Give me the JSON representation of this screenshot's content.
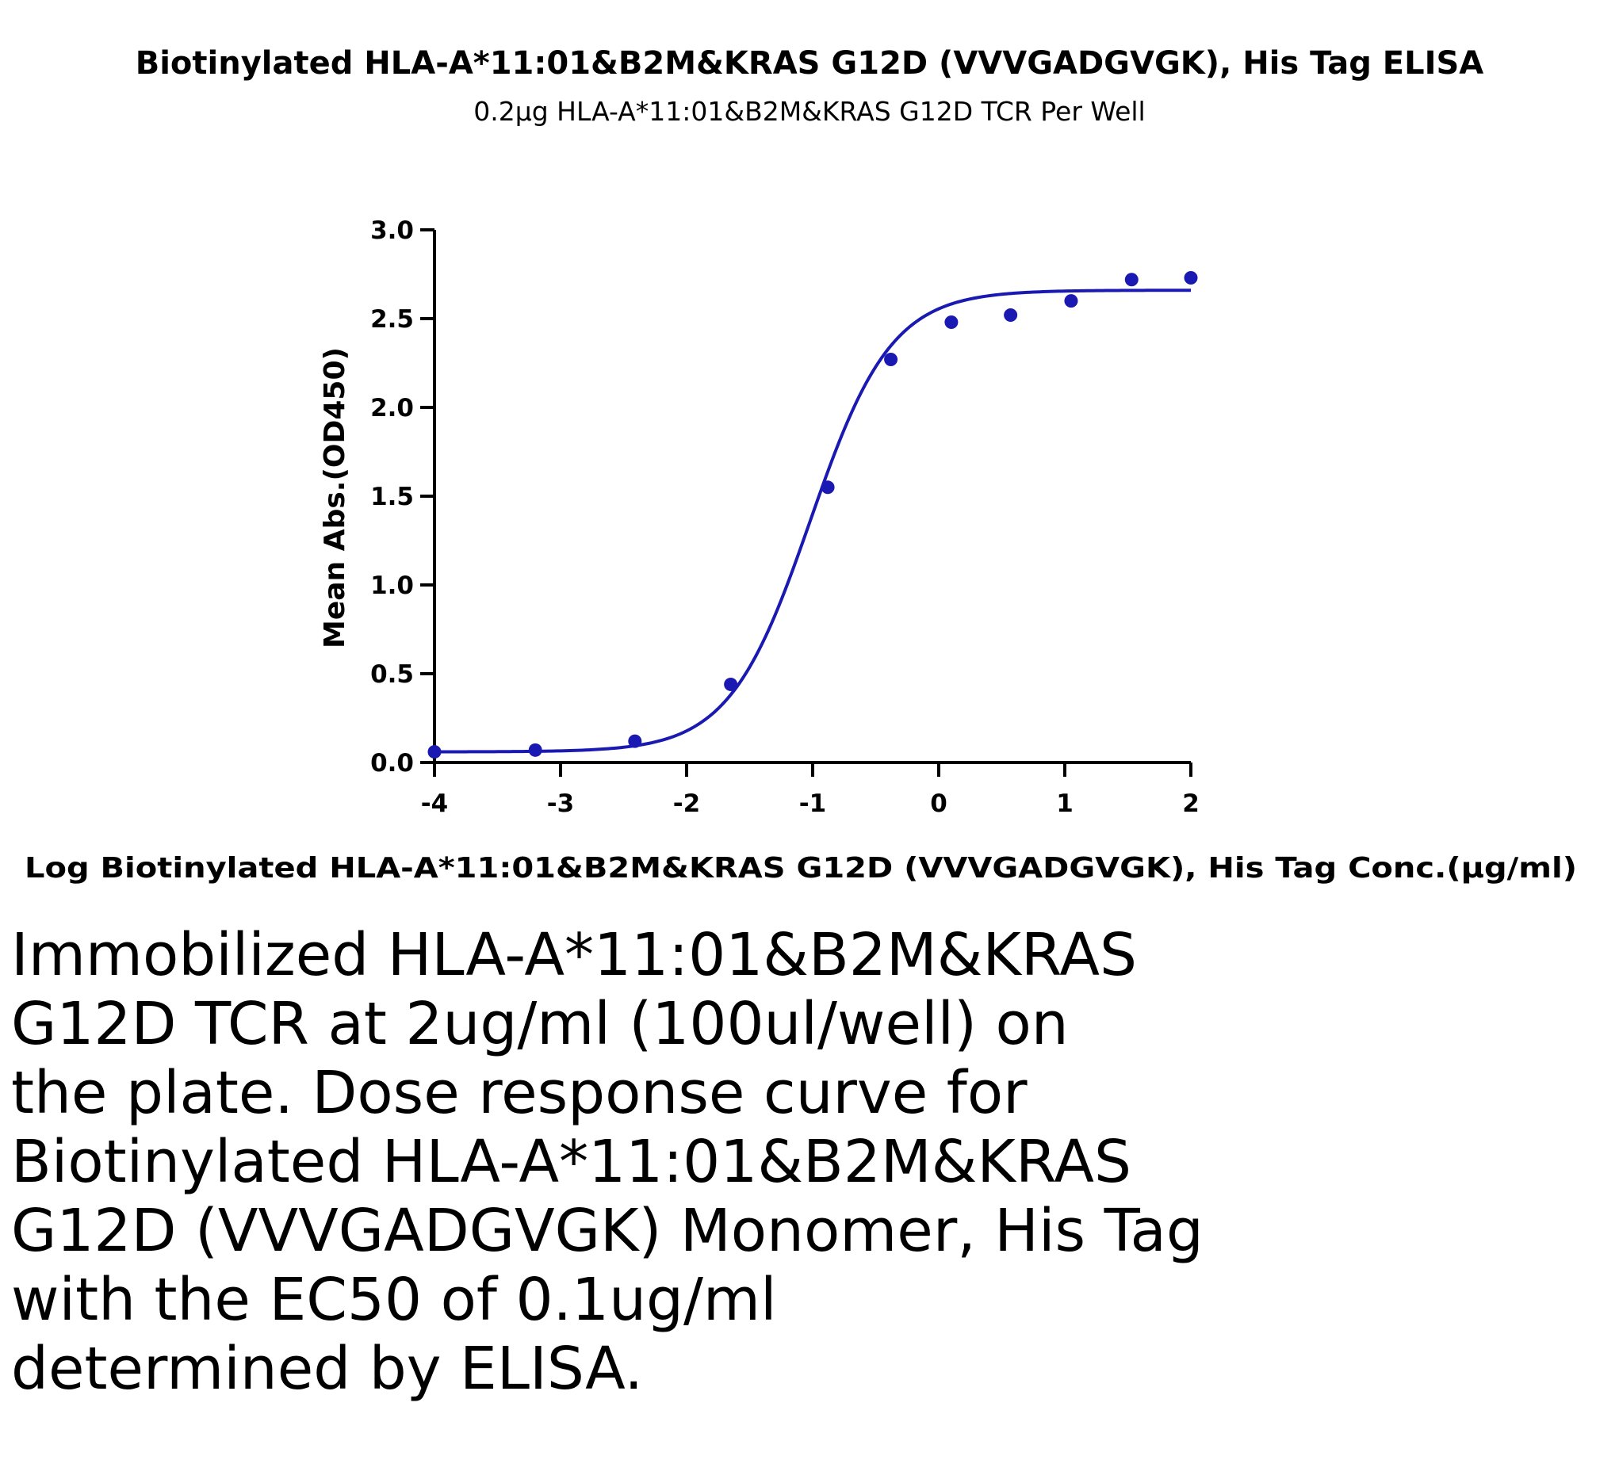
{
  "chart_data": {
    "type": "scatter",
    "title": "Biotinylated HLA-A*11:01&B2M&KRAS G12D (VVVGADGVGK), His Tag ELISA",
    "subtitle": "0.2μg HLA-A*11:01&B2M&KRAS G12D TCR Per Well",
    "xlabel": "Log Biotinylated HLA-A*11:01&B2M&KRAS G12D (VVVGADGVGK), His Tag Conc.(μg/ml)",
    "ylabel": "Mean Abs.(OD450)",
    "xlim": [
      -4,
      2
    ],
    "ylim": [
      0,
      3
    ],
    "xticks": [
      "-4",
      "-3",
      "-2",
      "-1",
      "0",
      "1",
      "2"
    ],
    "yticks": [
      "0.0",
      "0.5",
      "1.0",
      "1.5",
      "2.0",
      "2.5",
      "3.0"
    ],
    "color": "#1a1ab3",
    "points": [
      {
        "x": -4.0,
        "y": 0.06
      },
      {
        "x": -3.2,
        "y": 0.07
      },
      {
        "x": -2.41,
        "y": 0.12
      },
      {
        "x": -1.65,
        "y": 0.44
      },
      {
        "x": -0.88,
        "y": 1.55
      },
      {
        "x": -0.38,
        "y": 2.27
      },
      {
        "x": 0.1,
        "y": 2.48
      },
      {
        "x": 0.57,
        "y": 2.52
      },
      {
        "x": 1.05,
        "y": 2.6
      },
      {
        "x": 1.53,
        "y": 2.72
      },
      {
        "x": 2.0,
        "y": 2.73
      }
    ],
    "fit_curve": {
      "bottom": 0.06,
      "top": 2.66,
      "logEC50": -1.02,
      "hill": 1.35
    },
    "grid": false,
    "legend": "none"
  },
  "caption": "Immobilized HLA-A*11:01&B2M&KRAS\nG12D TCR at 2ug/ml (100ul/well) on\nthe plate. Dose response curve for\nBiotinylated HLA-A*11:01&B2M&KRAS\nG12D (VVVGADGVGK) Monomer, His Tag\nwith the EC50 of 0.1ug/ml\ndetermined by ELISA."
}
